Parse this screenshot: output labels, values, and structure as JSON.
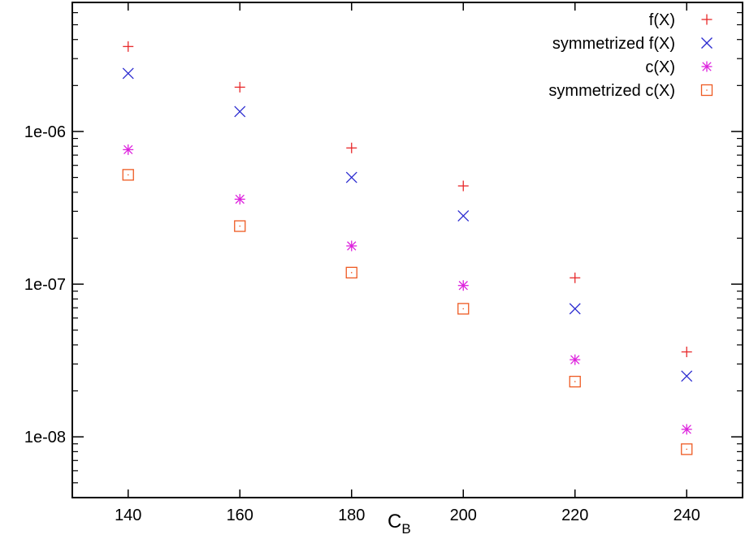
{
  "chart_data": {
    "type": "scatter",
    "xlabel": "C",
    "xlabel_subscript": "B",
    "ylabel": "",
    "xlim": [
      130,
      250
    ],
    "ylim": [
      4e-09,
      7e-06
    ],
    "yscale": "log",
    "grid": false,
    "legend_position": "top-right",
    "x_ticks": [
      140,
      160,
      180,
      200,
      220,
      240
    ],
    "x_tick_labels": [
      "140",
      "160",
      "180",
      "200",
      "220",
      "240"
    ],
    "y_ticks": [
      1e-08,
      1e-07,
      1e-06
    ],
    "y_tick_labels": [
      "1e-08",
      "1e-07",
      "1e-06"
    ],
    "x": [
      140,
      160,
      180,
      200,
      220,
      240
    ],
    "series": [
      {
        "name": "f(X)",
        "marker": "plus",
        "color": "#e8282a",
        "values": [
          3.6e-06,
          1.95e-06,
          7.8e-07,
          4.4e-07,
          1.1e-07,
          3.6e-08
        ]
      },
      {
        "name": "symmetrized f(X)",
        "marker": "cross",
        "color": "#2b2bd0",
        "values": [
          2.4e-06,
          1.35e-06,
          5e-07,
          2.8e-07,
          6.9e-08,
          2.5e-08
        ]
      },
      {
        "name": "c(X)",
        "marker": "star",
        "color": "#dd22dd",
        "values": [
          7.6e-07,
          3.6e-07,
          1.78e-07,
          9.8e-08,
          3.2e-08,
          1.12e-08
        ]
      },
      {
        "name": "symmetrized c(X)",
        "marker": "square",
        "color": "#ee5a22",
        "values": [
          5.2e-07,
          2.4e-07,
          1.19e-07,
          6.9e-08,
          2.3e-08,
          8.3e-09
        ]
      }
    ]
  }
}
